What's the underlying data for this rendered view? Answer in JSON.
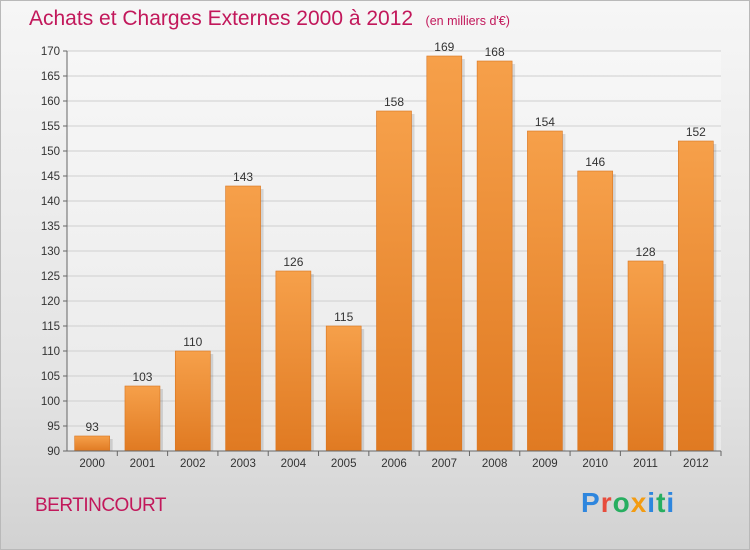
{
  "header": {
    "title": "Achats et Charges Externes 2000 à 2012",
    "unit": "(en milliers d'€)"
  },
  "footer": {
    "place": "BERTINCOURT",
    "logo": [
      "P",
      "r",
      "o",
      "x",
      "i",
      "t",
      "i"
    ],
    "logo_colors": [
      "#2e86de",
      "#e74c3c",
      "#27ae60",
      "#f39c12",
      "#2e86de",
      "#27ae60",
      "#2e86de"
    ]
  },
  "chart_data": {
    "type": "bar",
    "categories": [
      "2000",
      "2001",
      "2002",
      "2003",
      "2004",
      "2005",
      "2006",
      "2007",
      "2008",
      "2009",
      "2010",
      "2011",
      "2012"
    ],
    "values": [
      93,
      103,
      110,
      143,
      126,
      115,
      158,
      169,
      168,
      154,
      146,
      128,
      152
    ],
    "title": "Achats et Charges Externes 2000 à 2012",
    "unit": "(en milliers d'€)",
    "ylim": [
      90,
      170
    ],
    "yticks": [
      90,
      95,
      100,
      105,
      110,
      115,
      120,
      125,
      130,
      135,
      140,
      145,
      150,
      155,
      160,
      165,
      170
    ],
    "grid": true,
    "bar_color": "#f0963c"
  }
}
